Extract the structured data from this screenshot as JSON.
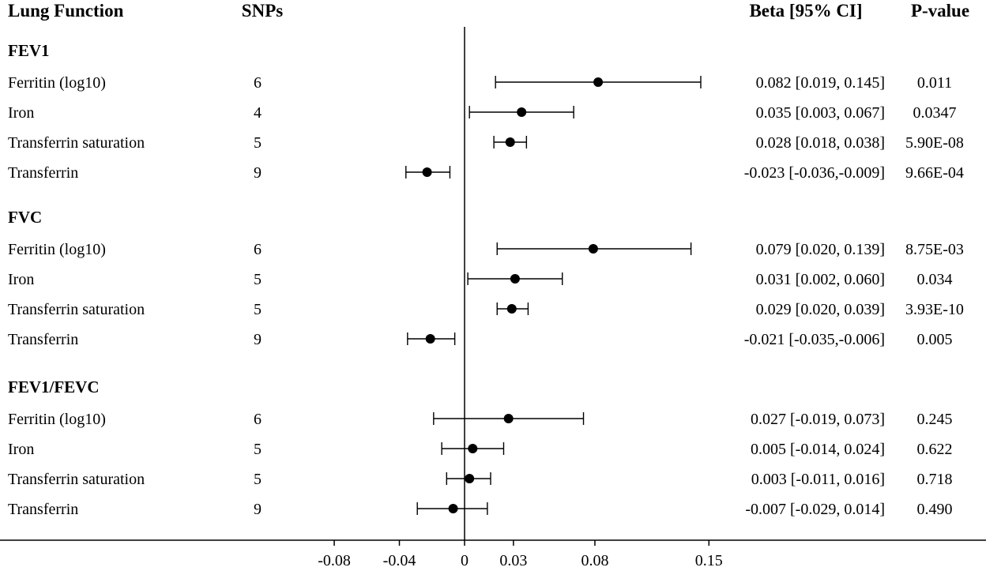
{
  "chart_data": {
    "type": "forest",
    "headers": {
      "label": "Lung Function",
      "snps": "SNPs",
      "estimate": "Beta [95% CI]",
      "pvalue": "P-value"
    },
    "x_axis": {
      "ticks": [
        -0.08,
        -0.04,
        0,
        0.03,
        0.08,
        0.15
      ],
      "tick_labels": [
        "-0.08",
        "-0.04",
        "0",
        "0.03",
        "0.08",
        "0.15"
      ],
      "reference_line": 0,
      "xlim": [
        -0.125,
        0.17
      ]
    },
    "groups": [
      {
        "name": "FEV1",
        "rows": [
          {
            "label": "Ferritin (log10)",
            "snps": "6",
            "beta": 0.082,
            "lower": 0.019,
            "upper": 0.145,
            "ci_text": "0.082 [0.019, 0.145]",
            "p": "0.011"
          },
          {
            "label": "Iron",
            "snps": "4",
            "beta": 0.035,
            "lower": 0.003,
            "upper": 0.067,
            "ci_text": "0.035 [0.003, 0.067]",
            "p": "0.0347"
          },
          {
            "label": "Transferrin saturation",
            "snps": "5",
            "beta": 0.028,
            "lower": 0.018,
            "upper": 0.038,
            "ci_text": "0.028 [0.018, 0.038]",
            "p": "5.90E-08"
          },
          {
            "label": "Transferrin",
            "snps": "9",
            "beta": -0.023,
            "lower": -0.036,
            "upper": -0.009,
            "ci_text": "-0.023 [-0.036,-0.009]",
            "p": "9.66E-04"
          }
        ]
      },
      {
        "name": "FVC",
        "rows": [
          {
            "label": "Ferritin (log10)",
            "snps": "6",
            "beta": 0.079,
            "lower": 0.02,
            "upper": 0.139,
            "ci_text": "0.079 [0.020, 0.139]",
            "p": "8.75E-03"
          },
          {
            "label": "Iron",
            "snps": "5",
            "beta": 0.031,
            "lower": 0.002,
            "upper": 0.06,
            "ci_text": "0.031 [0.002, 0.060]",
            "p": "0.034"
          },
          {
            "label": "Transferrin saturation",
            "snps": "5",
            "beta": 0.029,
            "lower": 0.02,
            "upper": 0.039,
            "ci_text": "0.029 [0.020, 0.039]",
            "p": "3.93E-10"
          },
          {
            "label": "Transferrin",
            "snps": "9",
            "beta": -0.021,
            "lower": -0.035,
            "upper": -0.006,
            "ci_text": "-0.021 [-0.035,-0.006]",
            "p": "0.005"
          }
        ]
      },
      {
        "name": "FEV1/FEVC",
        "rows": [
          {
            "label": "Ferritin (log10)",
            "snps": "6",
            "beta": 0.027,
            "lower": -0.019,
            "upper": 0.073,
            "ci_text": "0.027 [-0.019, 0.073]",
            "p": "0.245"
          },
          {
            "label": "Iron",
            "snps": "5",
            "beta": 0.005,
            "lower": -0.014,
            "upper": 0.024,
            "ci_text": "0.005 [-0.014, 0.024]",
            "p": "0.622"
          },
          {
            "label": "Transferrin saturation",
            "snps": "5",
            "beta": 0.003,
            "lower": -0.011,
            "upper": 0.016,
            "ci_text": "0.003 [-0.011, 0.016]",
            "p": "0.718"
          },
          {
            "label": "Transferrin",
            "snps": "9",
            "beta": -0.007,
            "lower": -0.029,
            "upper": 0.014,
            "ci_text": "-0.007 [-0.029, 0.014]",
            "p": "0.490"
          }
        ]
      }
    ]
  }
}
